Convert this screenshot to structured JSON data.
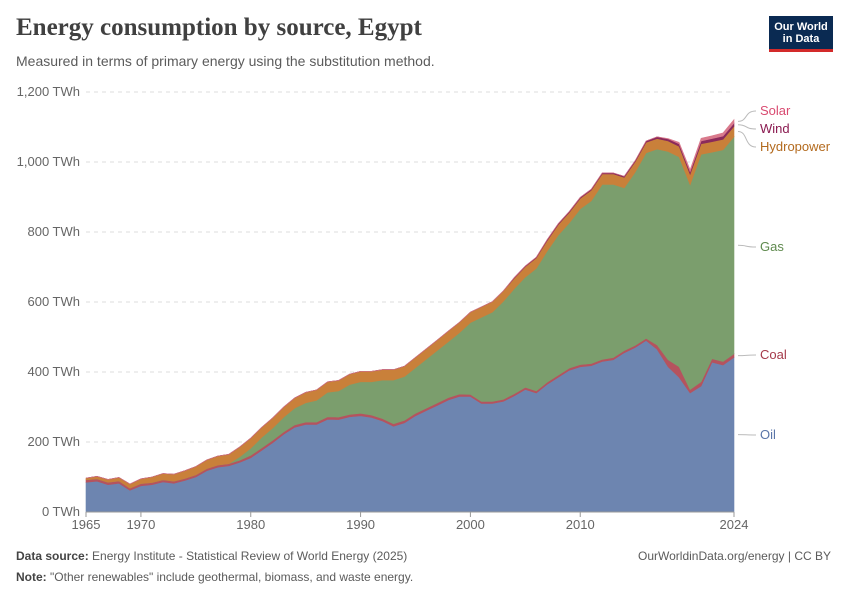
{
  "header": {
    "title": "Energy consumption by source, Egypt",
    "subtitle": "Measured in terms of primary energy using the substitution method.",
    "logo_line1": "Our World",
    "logo_line2": "in Data"
  },
  "footer": {
    "source_label": "Data source:",
    "source_text": "Energy Institute - Statistical Review of World Energy (2025)",
    "note_label": "Note:",
    "note_text": "\"Other renewables\" include geothermal, biomass, and waste energy.",
    "license": "OurWorldinData.org/energy | CC BY"
  },
  "chart_data": {
    "type": "area",
    "stacked": true,
    "title": "Energy consumption by source, Egypt",
    "ylabel": "",
    "xlabel": "",
    "ylim": [
      0,
      1200
    ],
    "xlim": [
      1965,
      2024
    ],
    "y_unit": " TWh",
    "y_ticks": [
      0,
      200,
      400,
      600,
      800,
      1000,
      1200
    ],
    "y_tick_labels": [
      "0 TWh",
      "200 TWh",
      "400 TWh",
      "600 TWh",
      "800 TWh",
      "1,000 TWh",
      "1,200 TWh"
    ],
    "x_ticks": [
      1965,
      1970,
      1980,
      1990,
      2000,
      2010,
      2024
    ],
    "x_tick_labels": [
      "1965",
      "1970",
      "1980",
      "1990",
      "2000",
      "2010",
      "2024"
    ],
    "grid": true,
    "legend": "right-inline",
    "years": [
      1965,
      1966,
      1967,
      1968,
      1969,
      1970,
      1971,
      1972,
      1973,
      1974,
      1975,
      1976,
      1977,
      1978,
      1979,
      1980,
      1981,
      1982,
      1983,
      1984,
      1985,
      1986,
      1987,
      1988,
      1989,
      1990,
      1991,
      1992,
      1993,
      1994,
      1995,
      1996,
      1997,
      1998,
      1999,
      2000,
      2001,
      2002,
      2003,
      2004,
      2005,
      2006,
      2007,
      2008,
      2009,
      2010,
      2011,
      2012,
      2013,
      2014,
      2015,
      2016,
      2017,
      2018,
      2019,
      2020,
      2021,
      2022,
      2023,
      2024
    ],
    "series": [
      {
        "name": "Oil",
        "color": "#6d85b0",
        "label_color": "#5a75a8",
        "values": [
          85,
          88,
          78,
          82,
          62,
          75,
          78,
          86,
          82,
          90,
          100,
          118,
          128,
          132,
          142,
          155,
          176,
          198,
          222,
          242,
          250,
          250,
          265,
          264,
          272,
          275,
          270,
          260,
          245,
          255,
          275,
          290,
          305,
          320,
          330,
          330,
          310,
          310,
          316,
          332,
          350,
          340,
          365,
          385,
          405,
          415,
          418,
          430,
          435,
          455,
          470,
          490,
          465,
          415,
          385,
          340,
          360,
          428,
          420,
          442
        ]
      },
      {
        "name": "Coal",
        "color": "#b5535e",
        "label_color": "#a53a4a",
        "values": [
          7,
          7,
          7,
          7,
          6,
          6,
          6,
          6,
          6,
          6,
          6,
          6,
          6,
          6,
          6,
          7,
          7,
          7,
          7,
          7,
          7,
          7,
          7,
          7,
          7,
          7,
          7,
          7,
          7,
          7,
          7,
          7,
          7,
          7,
          7,
          6,
          6,
          6,
          6,
          6,
          6,
          6,
          6,
          6,
          6,
          6,
          6,
          6,
          6,
          6,
          6,
          6,
          12,
          20,
          30,
          10,
          12,
          10,
          10,
          10
        ]
      },
      {
        "name": "Gas",
        "color": "#7b9e6d",
        "label_color": "#5f8a4e",
        "values": [
          0,
          0,
          0,
          0,
          0,
          0,
          0,
          0,
          0,
          0,
          0,
          0,
          0,
          0,
          10,
          20,
          30,
          35,
          42,
          48,
          55,
          62,
          70,
          75,
          85,
          90,
          95,
          110,
          125,
          125,
          130,
          140,
          150,
          160,
          175,
          205,
          240,
          255,
          280,
          300,
          315,
          350,
          375,
          400,
          415,
          445,
          465,
          500,
          495,
          465,
          495,
          530,
          560,
          595,
          600,
          585,
          650,
          590,
          605,
          620
        ]
      },
      {
        "name": "Hydropower",
        "color": "#c9803a",
        "label_color": "#b36a1e",
        "values": [
          5,
          7,
          8,
          10,
          12,
          14,
          16,
          18,
          20,
          22,
          24,
          25,
          26,
          27,
          28,
          29,
          29,
          29,
          29,
          29,
          30,
          30,
          30,
          30,
          30,
          30,
          30,
          30,
          30,
          30,
          30,
          30,
          30,
          30,
          30,
          30,
          30,
          30,
          30,
          30,
          30,
          30,
          30,
          30,
          30,
          30,
          30,
          30,
          30,
          30,
          30,
          30,
          30,
          30,
          30,
          30,
          30,
          30,
          30,
          30
        ]
      },
      {
        "name": "Wind",
        "color": "#8a2a5b",
        "label_color": "#8a1a50",
        "values": [
          0,
          0,
          0,
          0,
          0,
          0,
          0,
          0,
          0,
          0,
          0,
          0,
          0,
          0,
          0,
          0,
          0,
          0,
          0,
          0,
          0,
          0,
          0,
          0,
          0,
          0,
          0,
          0,
          0,
          0,
          0,
          0,
          0,
          0,
          0,
          0,
          0,
          0,
          0,
          2,
          2,
          2,
          3,
          3,
          3,
          3,
          3,
          3,
          3,
          3,
          3,
          4,
          5,
          6,
          7,
          7,
          8,
          9,
          9,
          9
        ]
      },
      {
        "name": "Solar",
        "color": "#d97a8c",
        "label_color": "#d94a70",
        "values": [
          0,
          0,
          0,
          0,
          0,
          0,
          0,
          0,
          0,
          0,
          0,
          0,
          0,
          0,
          0,
          0,
          0,
          0,
          0,
          0,
          0,
          0,
          0,
          0,
          0,
          0,
          0,
          0,
          0,
          0,
          0,
          0,
          0,
          0,
          0,
          0,
          0,
          0,
          0,
          0,
          0,
          0,
          0,
          0,
          0,
          0,
          0,
          0,
          0,
          0,
          0,
          0,
          0,
          1,
          4,
          6,
          8,
          8,
          9,
          10
        ]
      }
    ]
  }
}
